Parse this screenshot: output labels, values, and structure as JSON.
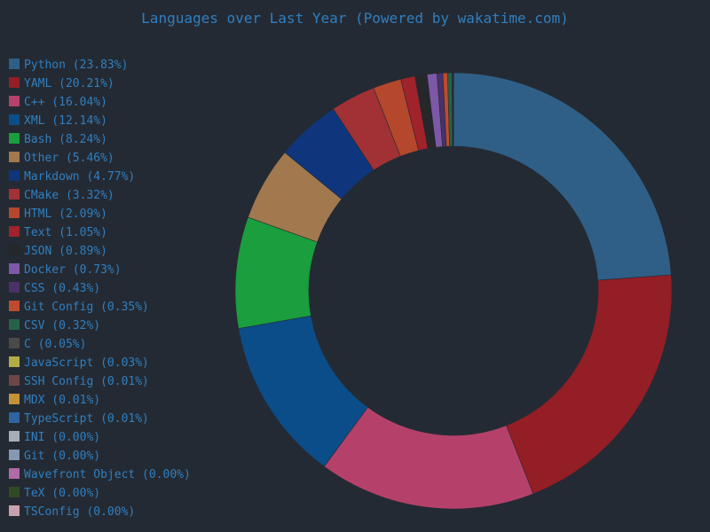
{
  "colors": {
    "background": "#242a33",
    "text": "#2f7fc1"
  },
  "chart_data": {
    "type": "pie",
    "title": "Languages over Last Year (Powered by wakatime.com)",
    "legend_position": "left",
    "donut": true,
    "start_angle_deg": 0,
    "direction": "clockwise",
    "series": [
      {
        "name": "Python",
        "label": "Python (23.83%)",
        "value": 23.83,
        "color": "#2f5f87"
      },
      {
        "name": "YAML",
        "label": "YAML (20.21%)",
        "value": 20.21,
        "color": "#931e25"
      },
      {
        "name": "C++",
        "label": "C++ (16.04%)",
        "value": 16.04,
        "color": "#b5416a"
      },
      {
        "name": "XML",
        "label": "XML (12.14%)",
        "value": 12.14,
        "color": "#0b4d89"
      },
      {
        "name": "Bash",
        "label": "Bash (8.24%)",
        "value": 8.24,
        "color": "#1a9e3e"
      },
      {
        "name": "Other",
        "label": "Other (5.46%)",
        "value": 5.46,
        "color": "#a2784f"
      },
      {
        "name": "Markdown",
        "label": "Markdown (4.77%)",
        "value": 4.77,
        "color": "#0f367c"
      },
      {
        "name": "CMake",
        "label": "CMake (3.32%)",
        "value": 3.32,
        "color": "#a23135"
      },
      {
        "name": "HTML",
        "label": "HTML (2.09%)",
        "value": 2.09,
        "color": "#b5472c"
      },
      {
        "name": "Text",
        "label": "Text (1.05%)",
        "value": 1.05,
        "color": "#a0222b"
      },
      {
        "name": "JSON",
        "label": "JSON (0.89%)",
        "value": 0.89,
        "color": "#25272a"
      },
      {
        "name": "Docker",
        "label": "Docker (0.73%)",
        "value": 0.73,
        "color": "#7d58a6"
      },
      {
        "name": "CSS",
        "label": "CSS (0.43%)",
        "value": 0.43,
        "color": "#4a3168"
      },
      {
        "name": "Git Config",
        "label": "Git Config (0.35%)",
        "value": 0.35,
        "color": "#bf4b2e"
      },
      {
        "name": "CSV",
        "label": "CSV (0.32%)",
        "value": 0.32,
        "color": "#246348"
      },
      {
        "name": "C",
        "label": "C (0.05%)",
        "value": 0.05,
        "color": "#4a4a4a"
      },
      {
        "name": "JavaScript",
        "label": "JavaScript (0.03%)",
        "value": 0.03,
        "color": "#b3ac45"
      },
      {
        "name": "SSH Config",
        "label": "SSH Config (0.01%)",
        "value": 0.01,
        "color": "#6e4547"
      },
      {
        "name": "MDX",
        "label": "MDX (0.01%)",
        "value": 0.01,
        "color": "#c29235"
      },
      {
        "name": "TypeScript",
        "label": "TypeScript (0.01%)",
        "value": 0.01,
        "color": "#2f63a1"
      },
      {
        "name": "INI",
        "label": "INI (0.00%)",
        "value": 0.0,
        "color": "#a7aeb5"
      },
      {
        "name": "Git",
        "label": "Git (0.00%)",
        "value": 0.0,
        "color": "#8598b1"
      },
      {
        "name": "Wavefront Object",
        "label": "Wavefront Object (0.00%)",
        "value": 0.0,
        "color": "#b06aa7"
      },
      {
        "name": "TeX",
        "label": "TeX (0.00%)",
        "value": 0.0,
        "color": "#2f4a24"
      },
      {
        "name": "TSConfig",
        "label": "TSConfig (0.00%)",
        "value": 0.0,
        "color": "#c9a0ad"
      }
    ]
  }
}
